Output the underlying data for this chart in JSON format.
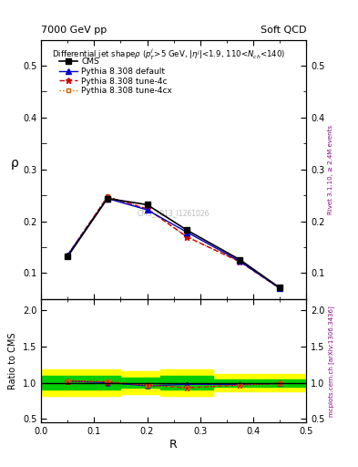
{
  "title_top_left": "7000 GeV pp",
  "title_top_right": "Soft QCD",
  "plot_title": "Differential jet shapep (p$_{T}^{j}$>5 GeV, |$\\eta^{j}$|<1.9, 110<N$_{ch}$<140)",
  "xlabel": "R",
  "ylabel_main": "ρ",
  "ylabel_ratio": "Ratio to CMS",
  "right_label_main": "Rivet 3.1.10, ≥ 2.4M events",
  "right_label_ratio": "mcplots.cern.ch [arXiv:1306.3436]",
  "watermark": "CMS_2013_I1261026",
  "x_data": [
    0.05,
    0.125,
    0.2,
    0.275,
    0.375,
    0.45
  ],
  "cms_y": [
    0.132,
    0.244,
    0.232,
    0.183,
    0.126,
    0.072
  ],
  "pythia_default_y": [
    0.135,
    0.244,
    0.222,
    0.179,
    0.123,
    0.071
  ],
  "pythia_4c_y": [
    0.135,
    0.247,
    0.224,
    0.17,
    0.122,
    0.071
  ],
  "pythia_4cx_y": [
    0.135,
    0.248,
    0.224,
    0.17,
    0.122,
    0.071
  ],
  "ratio_default": [
    1.023,
    1.0,
    0.957,
    0.978,
    0.976,
    0.99
  ],
  "ratio_4c": [
    1.023,
    1.012,
    0.966,
    0.929,
    0.968,
    0.99
  ],
  "ratio_4cx": [
    1.023,
    1.016,
    0.966,
    0.929,
    0.968,
    0.99
  ],
  "cms_color": "#000000",
  "default_color": "#0000cc",
  "tune4c_color": "#cc0000",
  "tune4cx_color": "#cc6600",
  "band_yellow": "#ffff00",
  "band_green": "#00cc00",
  "ylim_main": [
    0.05,
    0.55
  ],
  "ylim_ratio": [
    0.45,
    2.15
  ],
  "yticks_main": [
    0.1,
    0.2,
    0.3,
    0.4,
    0.5
  ],
  "yticks_ratio": [
    0.5,
    1.0,
    1.5,
    2.0
  ],
  "xlim": [
    0.0,
    0.5
  ],
  "band_x_edges": [
    0.0,
    0.075,
    0.15,
    0.225,
    0.325,
    0.425,
    0.5
  ],
  "yellow_lo": [
    0.82,
    0.82,
    0.84,
    0.82,
    0.88,
    0.88
  ],
  "yellow_hi": [
    1.18,
    1.18,
    1.16,
    1.18,
    1.12,
    1.12
  ],
  "green_lo": [
    0.91,
    0.91,
    0.93,
    0.91,
    0.95,
    0.95
  ],
  "green_hi": [
    1.09,
    1.09,
    1.07,
    1.09,
    1.05,
    1.05
  ]
}
